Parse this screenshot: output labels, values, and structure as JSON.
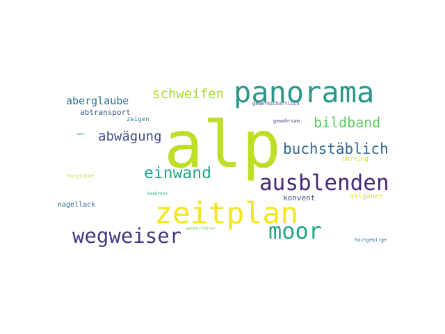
{
  "wordcloud": {
    "words": [
      {
        "text": "alp",
        "color": "#bddf26"
      },
      {
        "text": "panorama",
        "color": "#2a978a"
      },
      {
        "text": "zeitplan",
        "color": "#f4e61e"
      },
      {
        "text": "ausblenden",
        "color": "#482878"
      },
      {
        "text": "wegweiser",
        "color": "#443a83"
      },
      {
        "text": "moor",
        "color": "#21a585"
      },
      {
        "text": "buchstäblich",
        "color": "#31688e"
      },
      {
        "text": "einwand",
        "color": "#20a386"
      },
      {
        "text": "bildband",
        "color": "#5ec962"
      },
      {
        "text": "schweifen",
        "color": "#a5db36"
      },
      {
        "text": "abwägung",
        "color": "#3e4c8a"
      },
      {
        "text": "aberglaube",
        "color": "#2c728e"
      },
      {
        "text": "abtransport",
        "color": "#3b528b"
      },
      {
        "text": "konvent",
        "color": "#3a548c"
      },
      {
        "text": "zeigen",
        "color": "#2a788e"
      },
      {
        "text": "allgäuer",
        "color": "#e2e418"
      },
      {
        "text": "ohrring",
        "color": "#c8e020"
      },
      {
        "text": "nagellack",
        "color": "#2d708e"
      },
      {
        "text": "gewahrsam",
        "color": "#3f4788"
      },
      {
        "text": "gewerkschaftlich",
        "color": "#414487"
      },
      {
        "text": "burgruine",
        "color": "#b5de2b"
      },
      {
        "text": "konkrete",
        "color": "#26ad81"
      },
      {
        "text": "wanderführer",
        "color": "#73d056"
      },
      {
        "text": "hochgebirge",
        "color": "#2a778e"
      },
      {
        "text": "ceit",
        "color": "#22a884"
      }
    ]
  }
}
